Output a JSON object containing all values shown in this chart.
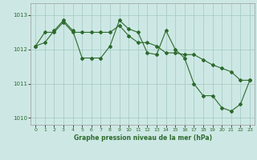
{
  "line1_x": [
    0,
    1,
    2,
    3,
    4,
    5,
    6,
    7,
    8,
    9,
    10,
    11,
    12,
    13,
    14,
    15,
    16,
    17,
    18,
    19,
    20,
    21,
    22,
    23
  ],
  "line1_y": [
    1012.1,
    1012.5,
    1012.5,
    1012.8,
    1012.5,
    1012.5,
    1012.5,
    1012.5,
    1012.5,
    1012.7,
    1012.4,
    1012.2,
    1012.2,
    1012.1,
    1011.9,
    1011.9,
    1011.85,
    1011.85,
    1011.7,
    1011.55,
    1011.45,
    1011.35,
    1011.1,
    1011.1
  ],
  "line2_x": [
    0,
    1,
    2,
    3,
    4,
    5,
    6,
    7,
    8,
    9,
    10,
    11,
    12,
    13,
    14,
    15,
    16,
    17,
    18,
    19,
    20,
    21,
    22,
    23
  ],
  "line2_y": [
    1012.1,
    1012.2,
    1012.55,
    1012.85,
    1012.55,
    1011.75,
    1011.75,
    1011.75,
    1012.1,
    1012.85,
    1012.6,
    1012.5,
    1011.9,
    1011.85,
    1012.55,
    1012.0,
    1011.75,
    1011.0,
    1010.65,
    1010.65,
    1010.3,
    1010.2,
    1010.4,
    1011.1
  ],
  "line_color": "#2d6a2d",
  "bg_color": "#cde8e4",
  "grid_color": "#a8ccc8",
  "xlabel": "Graphe pression niveau de la mer (hPa)",
  "ylim": [
    1009.8,
    1013.35
  ],
  "xlim": [
    -0.5,
    23.5
  ],
  "yticks": [
    1010,
    1011,
    1012,
    1013
  ],
  "xticks": [
    0,
    1,
    2,
    3,
    4,
    5,
    6,
    7,
    8,
    9,
    10,
    11,
    12,
    13,
    14,
    15,
    16,
    17,
    18,
    19,
    20,
    21,
    22,
    23
  ]
}
